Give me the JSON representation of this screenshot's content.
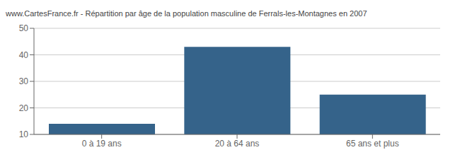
{
  "chart_data": {
    "type": "bar",
    "title": "www.CartesFrance.fr - Répartition par âge de la population masculine de Ferrals-les-Montagnes en 2007",
    "categories": [
      "0 à 19 ans",
      "20 à 64 ans",
      "65 ans et plus"
    ],
    "values": [
      14,
      43,
      25
    ],
    "color": "#35638a",
    "ylim": [
      10,
      50
    ],
    "yticks": [
      10,
      20,
      30,
      40,
      50
    ],
    "grid": true
  }
}
